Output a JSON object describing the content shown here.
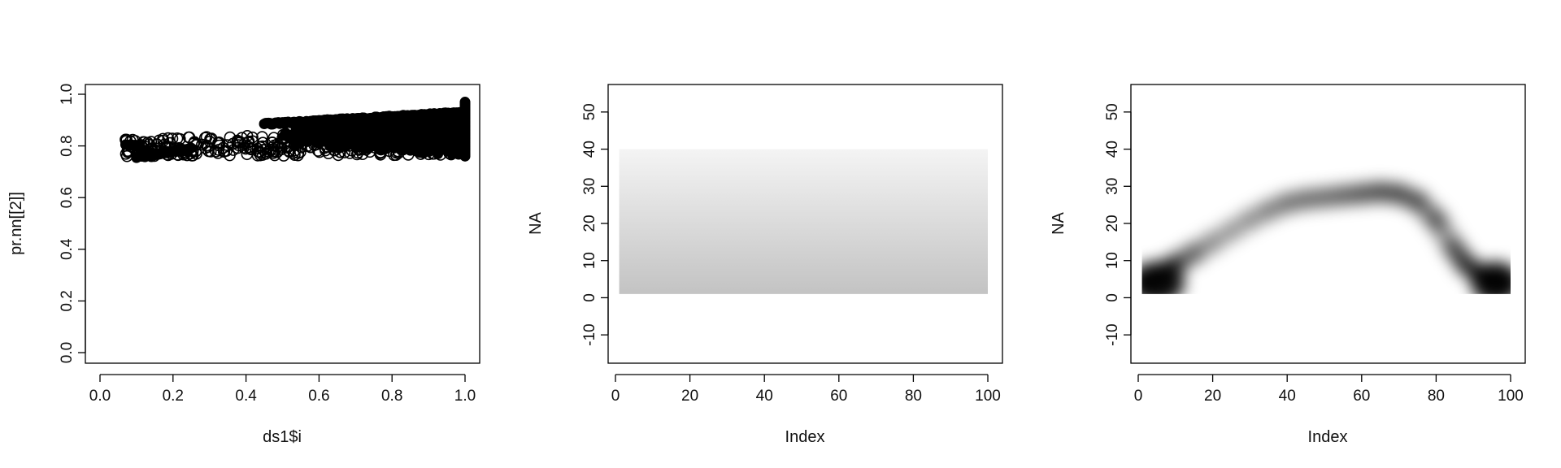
{
  "chart_data": [
    {
      "type": "scatter",
      "xlabel": "ds1$i",
      "ylabel": "pr.nn[[2]]",
      "xlim": [
        0.0,
        1.0
      ],
      "ylim": [
        0.0,
        1.0
      ],
      "x_ticks": [
        "0.0",
        "0.2",
        "0.4",
        "0.6",
        "0.8",
        "1.0"
      ],
      "y_ticks": [
        "0.0",
        "0.2",
        "0.4",
        "0.6",
        "0.8",
        "1.0"
      ],
      "grid": false,
      "series": [
        {
          "marker": "open-circle",
          "x_range": [
            0.07,
            1.0
          ],
          "y_band_low": [
            0.76,
            0.765
          ],
          "y_band_high": [
            0.83,
            0.86
          ],
          "approx_points": 400
        },
        {
          "marker": "filled-circle",
          "segments": [
            {
              "x_range": [
                0.07,
                0.11
              ],
              "y_start": 0.805,
              "y_end": 0.8
            },
            {
              "x_range": [
                0.1,
                0.25
              ],
              "y_start": 0.755,
              "y_end": 0.79
            },
            {
              "x_range": [
                0.45,
                1.0
              ],
              "y_start": 0.885,
              "y_end": 0.93
            }
          ],
          "fill_region": {
            "x_range": [
              0.5,
              1.0
            ],
            "y_low_start": 0.8,
            "y_low_end": 0.76,
            "y_high_start": 0.86,
            "y_high_end": 0.93
          },
          "max_point": {
            "x": 1.0,
            "y": 0.97
          }
        }
      ]
    },
    {
      "type": "heatmap",
      "xlabel": "Index",
      "ylabel": "NA",
      "xlim": [
        1,
        100
      ],
      "ylim": [
        -15,
        55
      ],
      "x_ticks": [
        "0",
        "20",
        "40",
        "60",
        "80",
        "100"
      ],
      "y_ticks": [
        "-10",
        "0",
        "10",
        "20",
        "30",
        "40",
        "50"
      ],
      "grid": false,
      "raster": {
        "x_range": [
          1,
          100
        ],
        "y_range": [
          1,
          40
        ],
        "gradient": "vertical",
        "color_bottom": "#c3c3c3",
        "color_top": "#f4f4f4"
      }
    },
    {
      "type": "heatmap",
      "xlabel": "Index",
      "ylabel": "NA",
      "xlim": [
        1,
        100
      ],
      "ylim": [
        -15,
        55
      ],
      "x_ticks": [
        "0",
        "20",
        "40",
        "60",
        "80",
        "100"
      ],
      "y_ticks": [
        "-10",
        "0",
        "10",
        "20",
        "30",
        "40",
        "50"
      ],
      "grid": false,
      "density_curve": {
        "x": [
          1,
          5,
          10,
          15,
          20,
          25,
          30,
          35,
          40,
          45,
          50,
          55,
          60,
          65,
          70,
          75,
          80,
          85,
          88,
          92,
          96,
          100
        ],
        "y": [
          4,
          6,
          9,
          12,
          15,
          18,
          21,
          23.5,
          25.5,
          26.5,
          27,
          27.5,
          28,
          28.5,
          28,
          26,
          21,
          13,
          9,
          6,
          5,
          4
        ],
        "intensity": [
          0.95,
          0.95,
          0.75,
          0.45,
          0.3,
          0.3,
          0.32,
          0.38,
          0.45,
          0.45,
          0.45,
          0.5,
          0.55,
          0.6,
          0.62,
          0.6,
          0.55,
          0.55,
          0.8,
          0.95,
          0.95,
          0.95
        ],
        "clip_y_min": 1
      }
    }
  ]
}
